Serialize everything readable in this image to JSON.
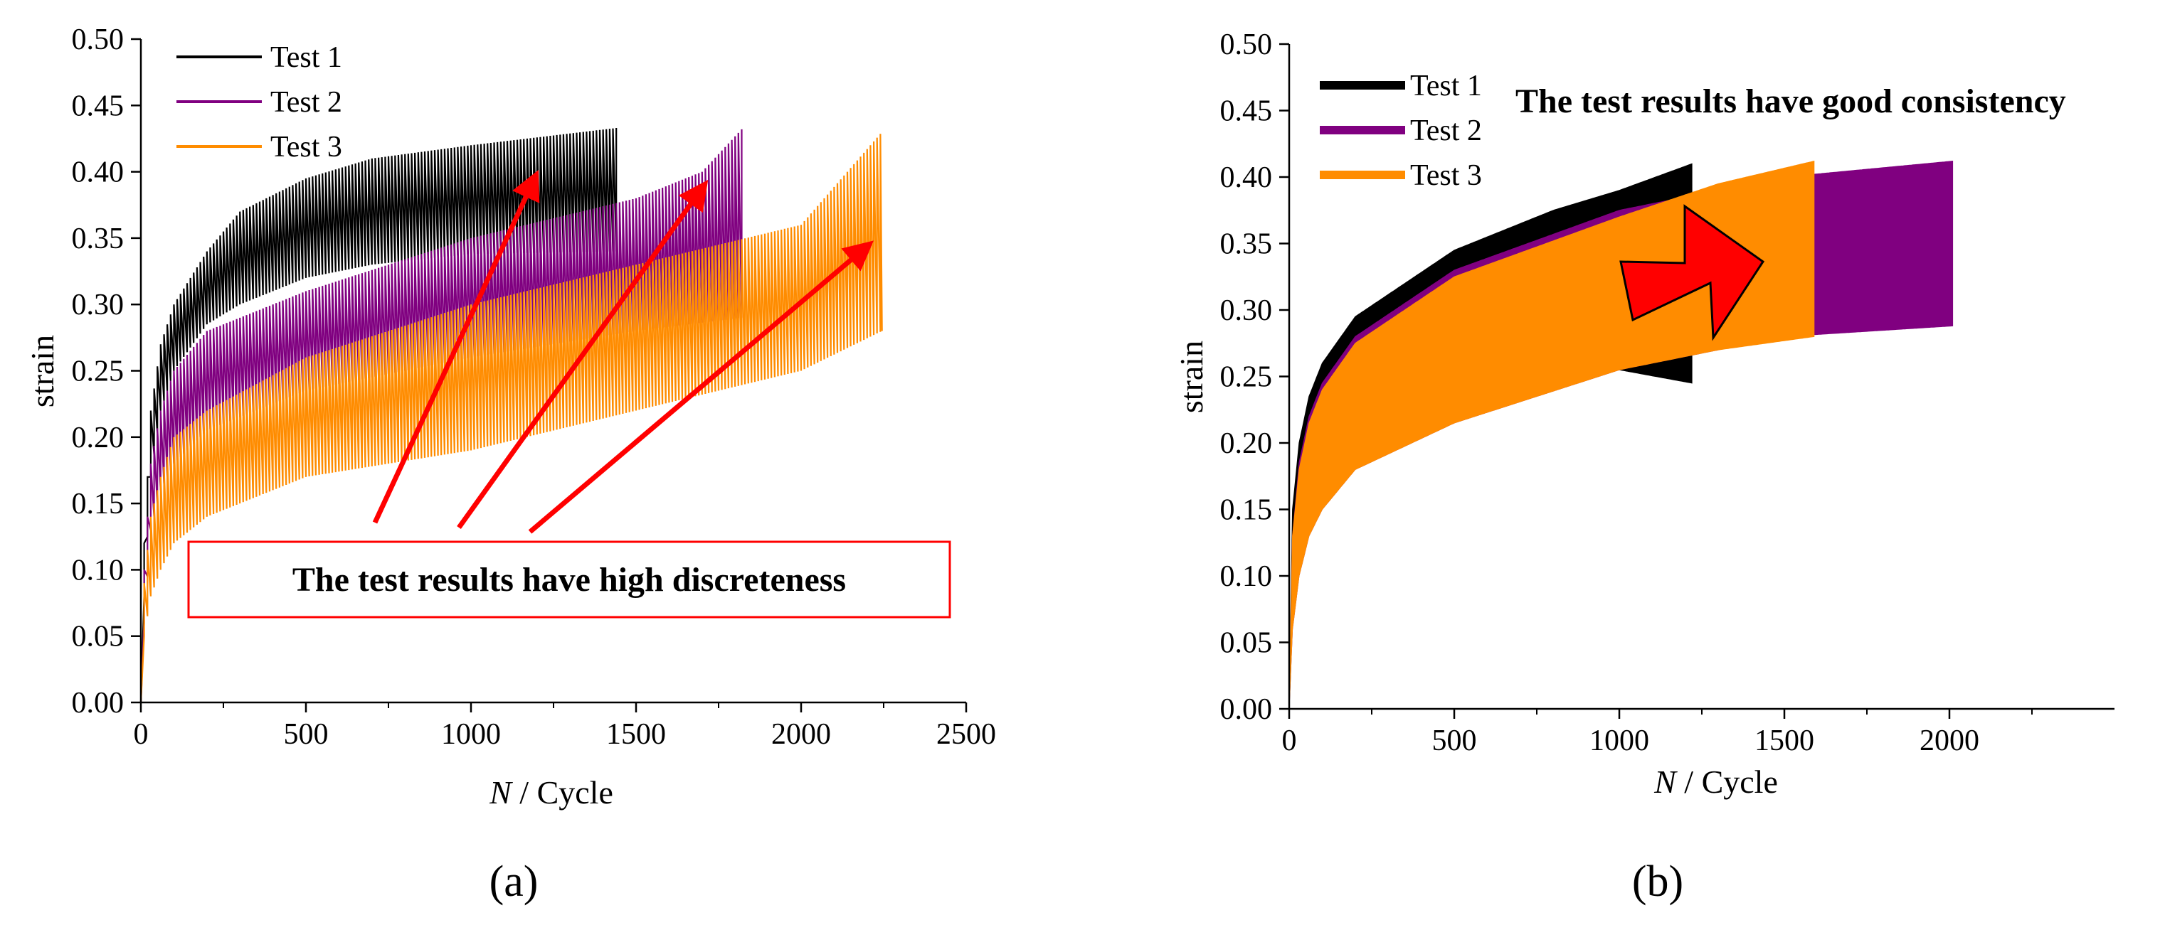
{
  "chart_data": [
    {
      "panel": "(a)",
      "type": "line",
      "xlabel_italic": "N",
      "xlabel_rest": " / Cycle",
      "ylabel": "strain",
      "xlim": [
        0,
        2500
      ],
      "ylim": [
        0,
        0.5
      ],
      "xticks": [
        0,
        500,
        1000,
        1500,
        2000,
        2500
      ],
      "yticks": [
        0.0,
        0.05,
        0.1,
        0.15,
        0.2,
        0.25,
        0.3,
        0.35,
        0.4,
        0.45,
        0.5
      ],
      "legend_position": "top-left",
      "series": [
        {
          "name": "Test 1",
          "color": "#000000",
          "end_cycle": 1440,
          "upper": [
            [
              0,
              0
            ],
            [
              10,
              0.12
            ],
            [
              30,
              0.22
            ],
            [
              60,
              0.27
            ],
            [
              100,
              0.3
            ],
            [
              200,
              0.34
            ],
            [
              300,
              0.37
            ],
            [
              500,
              0.395
            ],
            [
              700,
              0.41
            ],
            [
              1000,
              0.42
            ],
            [
              1440,
              0.433
            ]
          ],
          "lower": [
            [
              0,
              0
            ],
            [
              10,
              0.08
            ],
            [
              30,
              0.17
            ],
            [
              60,
              0.22
            ],
            [
              100,
              0.25
            ],
            [
              200,
              0.285
            ],
            [
              300,
              0.3
            ],
            [
              500,
              0.32
            ],
            [
              700,
              0.33
            ],
            [
              1000,
              0.338
            ],
            [
              1440,
              0.34
            ]
          ]
        },
        {
          "name": "Test 2",
          "color": "#800080",
          "end_cycle": 1820,
          "upper": [
            [
              0,
              0
            ],
            [
              10,
              0.1
            ],
            [
              30,
              0.18
            ],
            [
              60,
              0.22
            ],
            [
              100,
              0.25
            ],
            [
              200,
              0.28
            ],
            [
              500,
              0.31
            ],
            [
              1000,
              0.35
            ],
            [
              1500,
              0.38
            ],
            [
              1700,
              0.4
            ],
            [
              1820,
              0.432
            ]
          ],
          "lower": [
            [
              0,
              0
            ],
            [
              10,
              0.06
            ],
            [
              30,
              0.13
            ],
            [
              60,
              0.16
            ],
            [
              100,
              0.18
            ],
            [
              200,
              0.205
            ],
            [
              500,
              0.235
            ],
            [
              1000,
              0.26
            ],
            [
              1500,
              0.28
            ],
            [
              1820,
              0.29
            ]
          ]
        },
        {
          "name": "Test 3",
          "color": "#FF8C00",
          "end_cycle": 2245,
          "upper": [
            [
              0,
              0
            ],
            [
              10,
              0.09
            ],
            [
              30,
              0.14
            ],
            [
              60,
              0.17
            ],
            [
              100,
              0.2
            ],
            [
              200,
              0.22
            ],
            [
              500,
              0.26
            ],
            [
              1000,
              0.3
            ],
            [
              1500,
              0.33
            ],
            [
              2000,
              0.36
            ],
            [
              2245,
              0.43
            ]
          ],
          "lower": [
            [
              0,
              0
            ],
            [
              10,
              0.05
            ],
            [
              30,
              0.08
            ],
            [
              60,
              0.1
            ],
            [
              100,
              0.12
            ],
            [
              200,
              0.14
            ],
            [
              500,
              0.17
            ],
            [
              1000,
              0.19
            ],
            [
              1500,
              0.22
            ],
            [
              2000,
              0.25
            ],
            [
              2245,
              0.28
            ]
          ]
        }
      ],
      "annotation": "The test results have high discreteness"
    },
    {
      "panel": "(b)",
      "type": "line",
      "xlabel_italic": "N",
      "xlabel_rest": " / Cycle",
      "ylabel": "strain",
      "xlim": [
        0,
        2500
      ],
      "ylim": [
        0,
        0.5
      ],
      "xticks": [
        0,
        500,
        1000,
        1500,
        2000
      ],
      "yticks": [
        0.0,
        0.05,
        0.1,
        0.15,
        0.2,
        0.25,
        0.3,
        0.35,
        0.4,
        0.45,
        0.5
      ],
      "legend_position": "top-left",
      "series": [
        {
          "name": "Test 1",
          "color": "#000000",
          "end_cycle": 1220,
          "upper": [
            [
              0,
              0
            ],
            [
              10,
              0.15
            ],
            [
              30,
              0.2
            ],
            [
              60,
              0.235
            ],
            [
              100,
              0.26
            ],
            [
              200,
              0.295
            ],
            [
              500,
              0.345
            ],
            [
              800,
              0.375
            ],
            [
              1000,
              0.39
            ],
            [
              1220,
              0.41
            ]
          ],
          "lower": [
            [
              0,
              0
            ],
            [
              10,
              0.08
            ],
            [
              30,
              0.12
            ],
            [
              60,
              0.15
            ],
            [
              100,
              0.165
            ],
            [
              200,
              0.19
            ],
            [
              500,
              0.225
            ],
            [
              800,
              0.245
            ],
            [
              1000,
              0.255
            ],
            [
              1220,
              0.245
            ]
          ]
        },
        {
          "name": "Test 2",
          "color": "#800080",
          "end_cycle": 2010,
          "upper": [
            [
              0,
              0
            ],
            [
              10,
              0.13
            ],
            [
              30,
              0.185
            ],
            [
              60,
              0.22
            ],
            [
              100,
              0.245
            ],
            [
              200,
              0.28
            ],
            [
              500,
              0.33
            ],
            [
              1000,
              0.375
            ],
            [
              1500,
              0.4
            ],
            [
              2010,
              0.412
            ]
          ],
          "lower": [
            [
              0,
              0
            ],
            [
              10,
              0.06
            ],
            [
              30,
              0.1
            ],
            [
              60,
              0.13
            ],
            [
              100,
              0.15
            ],
            [
              200,
              0.18
            ],
            [
              500,
              0.215
            ],
            [
              1000,
              0.255
            ],
            [
              1500,
              0.28
            ],
            [
              2010,
              0.288
            ]
          ]
        },
        {
          "name": "Test 3",
          "color": "#FF8C00",
          "end_cycle": 1590,
          "upper": [
            [
              0,
              0
            ],
            [
              10,
              0.13
            ],
            [
              30,
              0.18
            ],
            [
              60,
              0.215
            ],
            [
              100,
              0.24
            ],
            [
              200,
              0.275
            ],
            [
              500,
              0.325
            ],
            [
              1000,
              0.37
            ],
            [
              1300,
              0.395
            ],
            [
              1590,
              0.412
            ]
          ],
          "lower": [
            [
              0,
              0
            ],
            [
              10,
              0.06
            ],
            [
              30,
              0.1
            ],
            [
              60,
              0.13
            ],
            [
              100,
              0.15
            ],
            [
              200,
              0.18
            ],
            [
              500,
              0.215
            ],
            [
              1000,
              0.255
            ],
            [
              1300,
              0.27
            ],
            [
              1590,
              0.28
            ]
          ]
        }
      ],
      "annotation": "The test results have good consistency"
    }
  ]
}
